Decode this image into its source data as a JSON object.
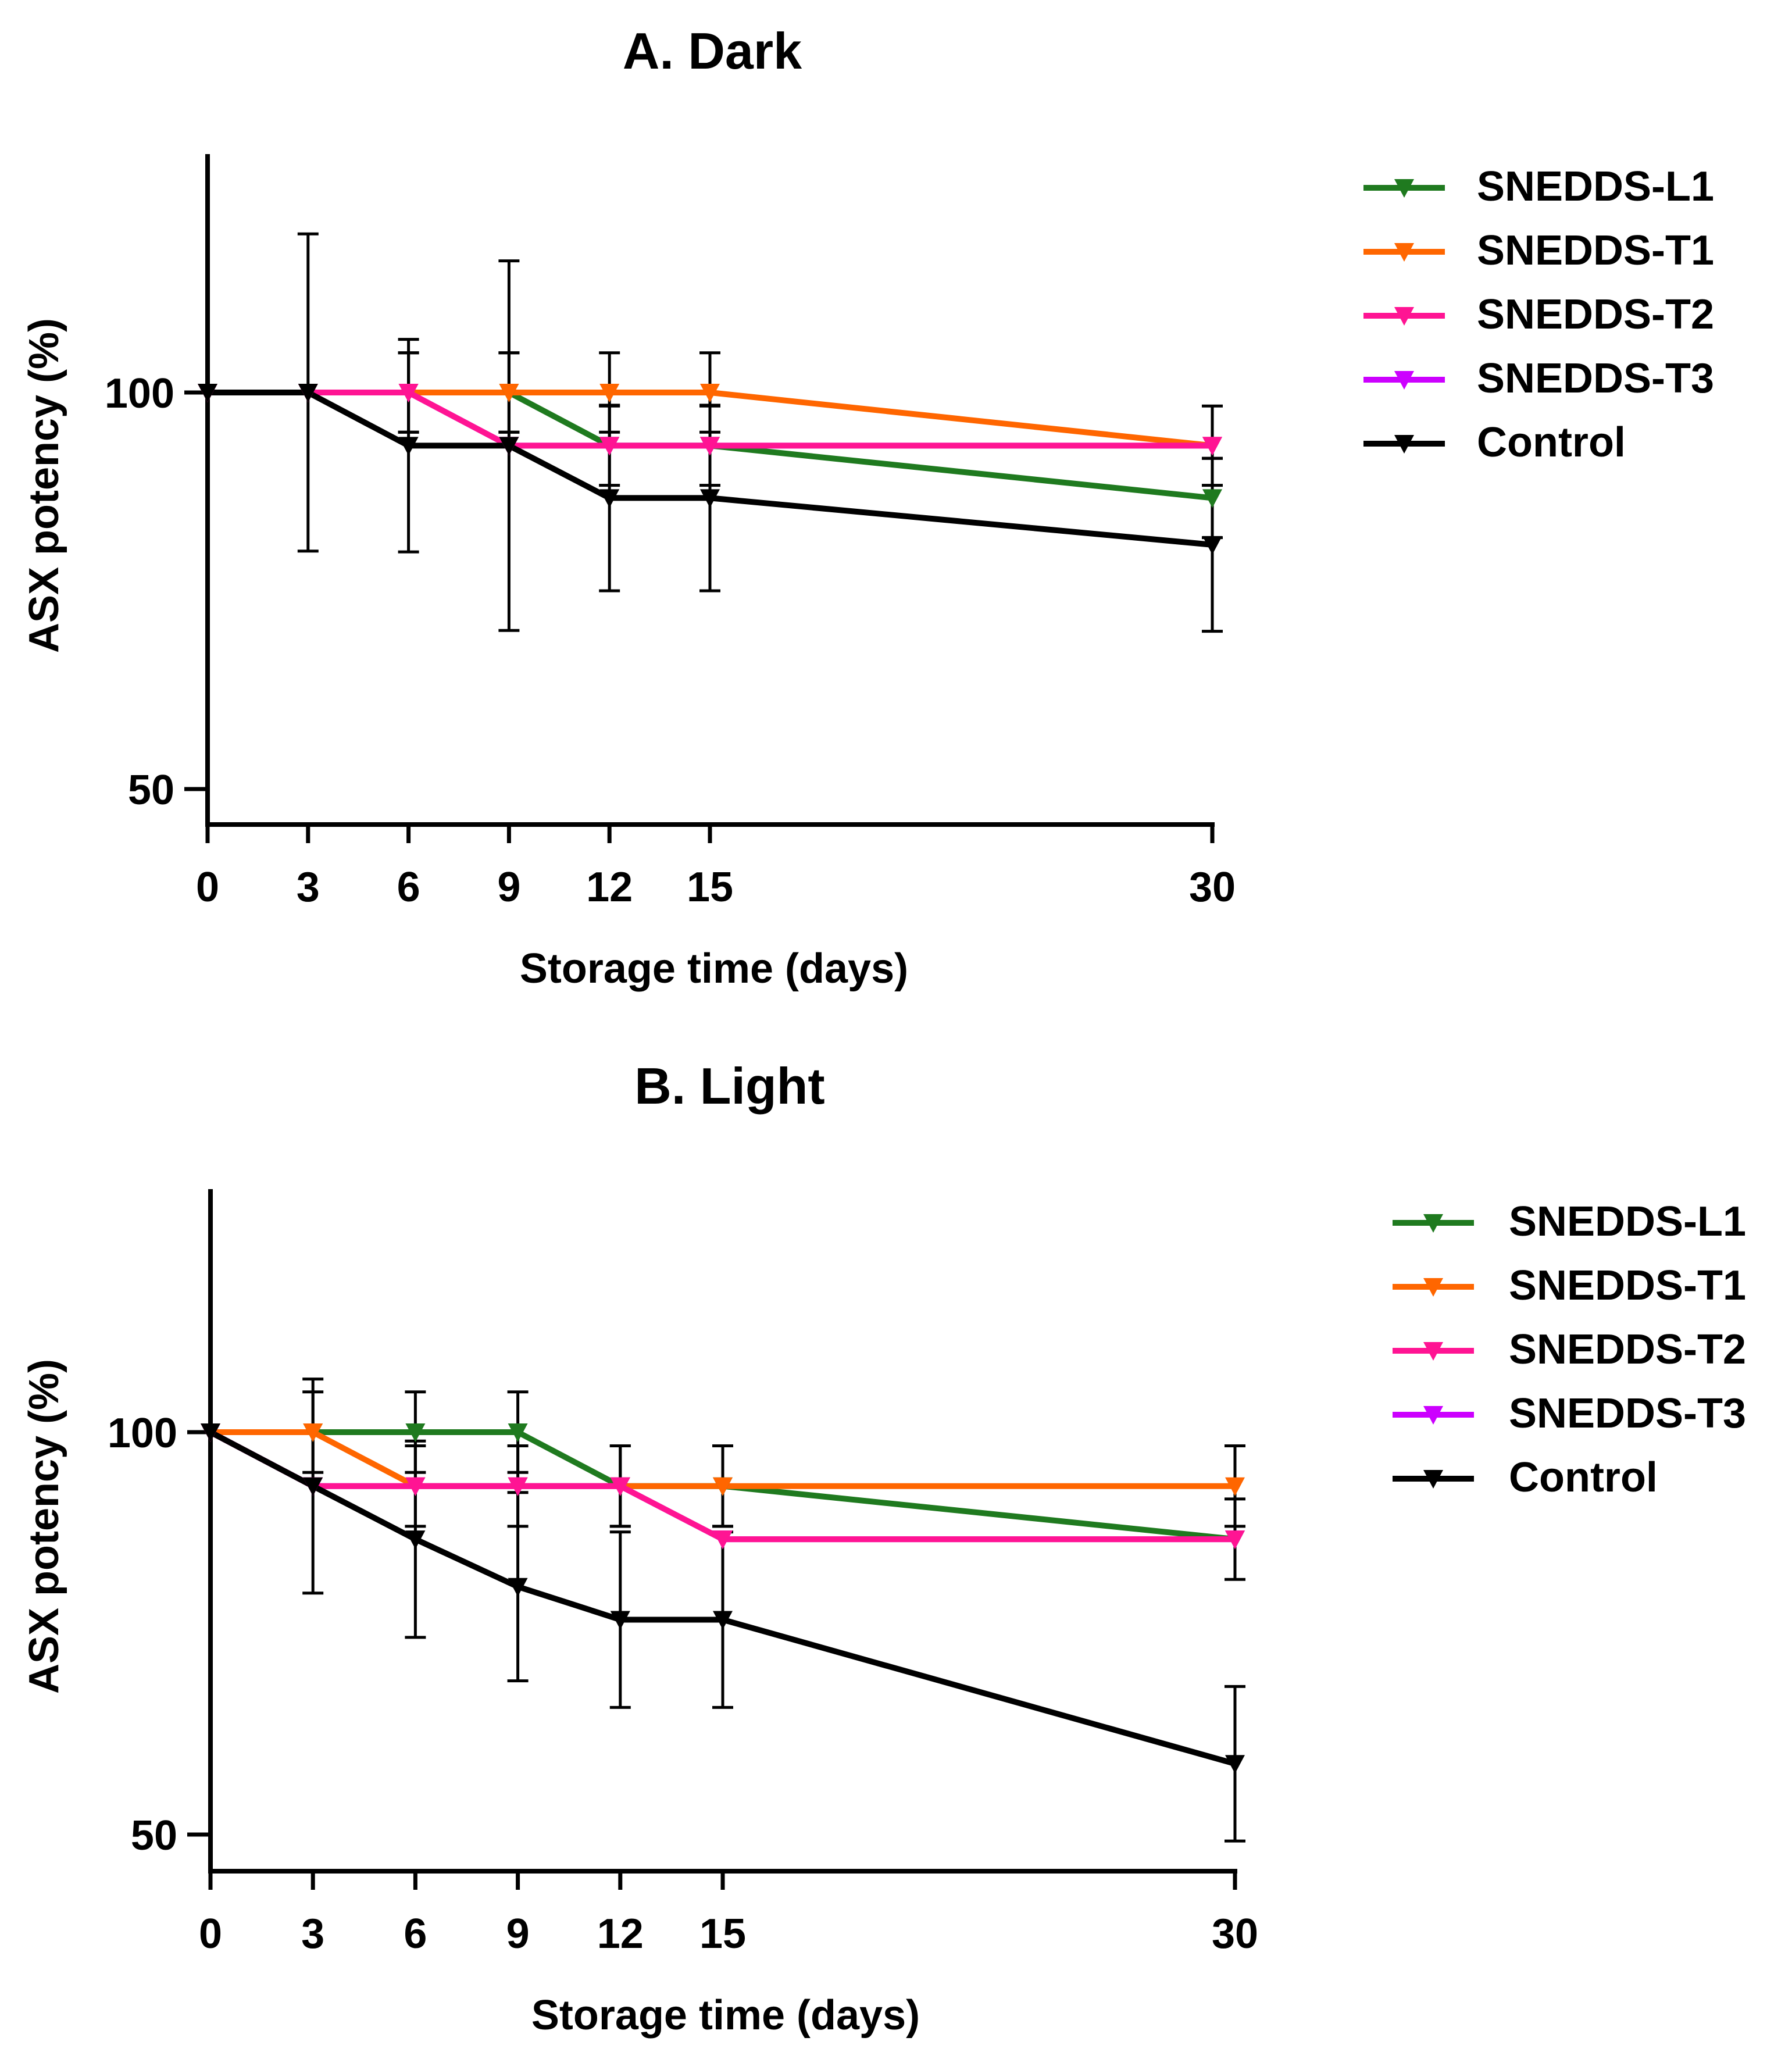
{
  "chart_data": [
    {
      "type": "line",
      "title": "A.   Dark",
      "xlabel": "Storage time (days)",
      "ylabel": "ASX potency (%)",
      "x": [
        0,
        3,
        6,
        9,
        12,
        15,
        30
      ],
      "x_ticks": [
        "0",
        "3",
        "6",
        "9",
        "12",
        "15",
        "30"
      ],
      "y_ticks": [
        "50",
        "100"
      ],
      "y_tick_values": [
        50,
        100
      ],
      "ylim": [
        45,
        130
      ],
      "xlim": [
        0,
        30
      ],
      "grid": false,
      "legend_position": "right",
      "series": [
        {
          "name": "SNEDDS-L1",
          "color": "#1f7a1f",
          "values": [
            100,
            100,
            100,
            100,
            93.3,
            93.3,
            86.7
          ],
          "err": [
            0,
            0,
            5,
            5,
            5,
            5,
            5
          ]
        },
        {
          "name": "SNEDDS-T1",
          "color": "#ff6600",
          "values": [
            100,
            100,
            100,
            100,
            100,
            100,
            93.3
          ],
          "err": [
            0,
            0,
            5,
            5,
            5,
            5,
            5
          ]
        },
        {
          "name": "SNEDDS-T2",
          "color": "#ff1493",
          "values": [
            100,
            100,
            100,
            93.3,
            93.3,
            93.3,
            93.3
          ],
          "err": [
            0,
            0,
            0,
            0,
            0,
            0,
            0
          ]
        },
        {
          "name": "SNEDDS-T3",
          "color": "#cc00ff",
          "values": [
            100,
            100,
            100,
            93.3,
            93.3,
            93.3,
            93.3
          ],
          "err": [
            0,
            0,
            0,
            0,
            0,
            0,
            0
          ]
        },
        {
          "name": "Control",
          "color": "#000000",
          "values": [
            100,
            100,
            93.3,
            93.3,
            86.7,
            86.7,
            80.8
          ],
          "err": [
            0,
            20,
            13.4,
            23.3,
            11.7,
            11.7,
            10.9
          ]
        }
      ]
    },
    {
      "type": "line",
      "title": "B.  Light",
      "xlabel": "Storage time (days)",
      "ylabel": "ASX potency (%)",
      "x": [
        0,
        3,
        6,
        9,
        12,
        15,
        30
      ],
      "x_ticks": [
        "0",
        "3",
        "6",
        "9",
        "12",
        "15",
        "30"
      ],
      "y_ticks": [
        "50",
        "100"
      ],
      "y_tick_values": [
        50,
        100
      ],
      "ylim": [
        45,
        130
      ],
      "xlim": [
        0,
        30
      ],
      "grid": false,
      "legend_position": "right",
      "series": [
        {
          "name": "SNEDDS-L1",
          "color": "#1f7a1f",
          "values": [
            100,
            100,
            100,
            100,
            93.3,
            93.3,
            86.7
          ],
          "err": [
            0,
            5,
            5,
            5,
            5,
            5,
            5
          ]
        },
        {
          "name": "SNEDDS-T1",
          "color": "#ff6600",
          "values": [
            100,
            100,
            93.3,
            93.3,
            93.3,
            93.3,
            93.3
          ],
          "err": [
            0,
            0,
            5,
            5,
            5,
            5,
            5
          ]
        },
        {
          "name": "SNEDDS-T2",
          "color": "#ff1493",
          "values": [
            100,
            93.3,
            93.3,
            93.3,
            93.3,
            86.7,
            86.7
          ],
          "err": [
            0,
            0,
            0,
            0,
            0,
            0,
            0
          ]
        },
        {
          "name": "SNEDDS-T3",
          "color": "#cc00ff",
          "values": [
            100,
            93.3,
            93.3,
            93.3,
            93.3,
            86.7,
            86.7
          ],
          "err": [
            0,
            0,
            0,
            0,
            0,
            0,
            0
          ]
        },
        {
          "name": "Control",
          "color": "#000000",
          "values": [
            100,
            93.3,
            86.7,
            80.8,
            76.7,
            76.7,
            58.8
          ],
          "err": [
            0,
            13.3,
            12.2,
            11.7,
            10.9,
            10.9,
            9.6
          ]
        }
      ]
    }
  ]
}
